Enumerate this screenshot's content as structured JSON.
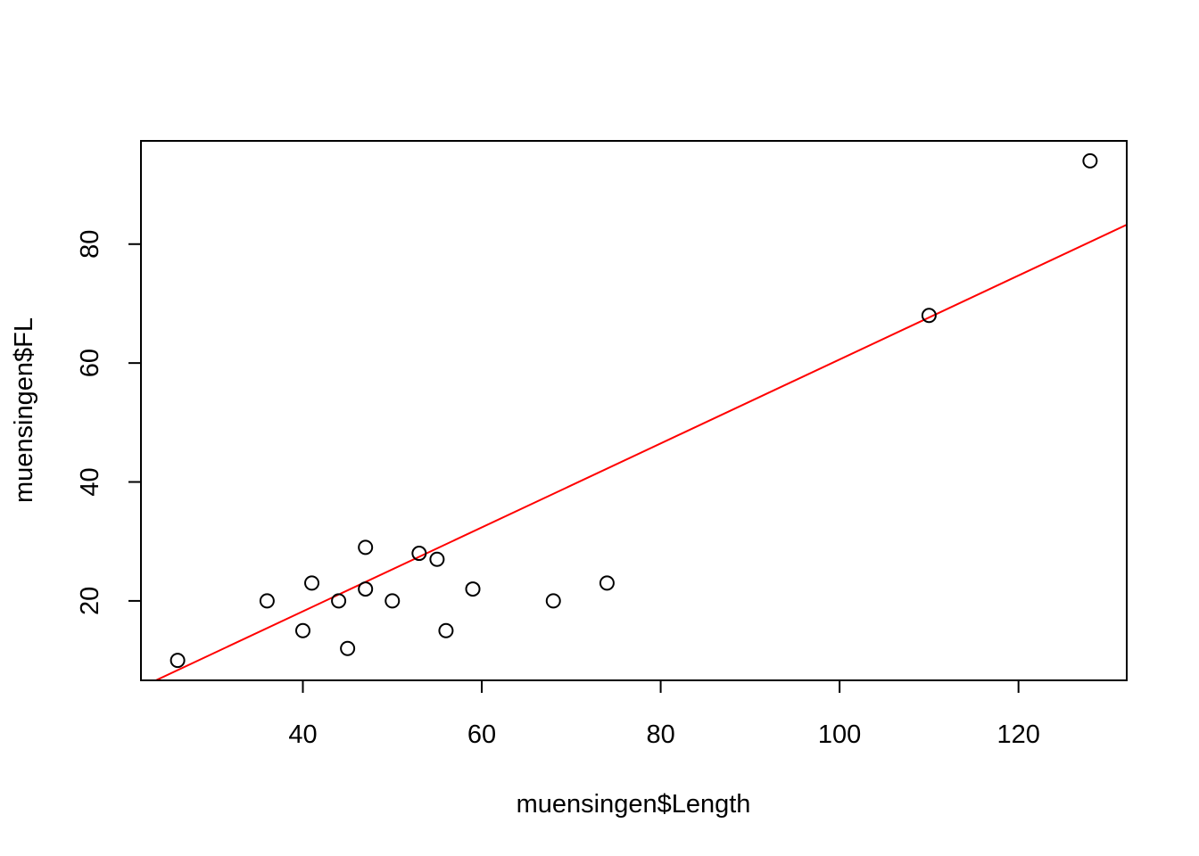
{
  "chart_data": {
    "type": "scatter",
    "title": "",
    "xlabel": "muensingen$Length",
    "ylabel": "muensingen$FL",
    "xlim": [
      21.9,
      132.1
    ],
    "ylim": [
      6.64,
      97.36
    ],
    "x_ticks": [
      40,
      60,
      80,
      100,
      120
    ],
    "y_ticks": [
      20,
      40,
      60,
      80
    ],
    "points": [
      {
        "x": 26,
        "y": 10
      },
      {
        "x": 36,
        "y": 20
      },
      {
        "x": 40,
        "y": 15
      },
      {
        "x": 41,
        "y": 23
      },
      {
        "x": 44,
        "y": 20
      },
      {
        "x": 45,
        "y": 12
      },
      {
        "x": 47,
        "y": 22
      },
      {
        "x": 47,
        "y": 29
      },
      {
        "x": 50,
        "y": 20
      },
      {
        "x": 53,
        "y": 28
      },
      {
        "x": 55,
        "y": 27
      },
      {
        "x": 56,
        "y": 15
      },
      {
        "x": 59,
        "y": 22
      },
      {
        "x": 68,
        "y": 20
      },
      {
        "x": 74,
        "y": 23
      },
      {
        "x": 110,
        "y": 68
      },
      {
        "x": 128,
        "y": 94
      }
    ],
    "regression_line": {
      "intercept": -10.0,
      "slope": 0.706
    },
    "grid": false,
    "colors": {
      "points": "#000000",
      "line": "#ff0000",
      "frame": "#000000"
    }
  }
}
